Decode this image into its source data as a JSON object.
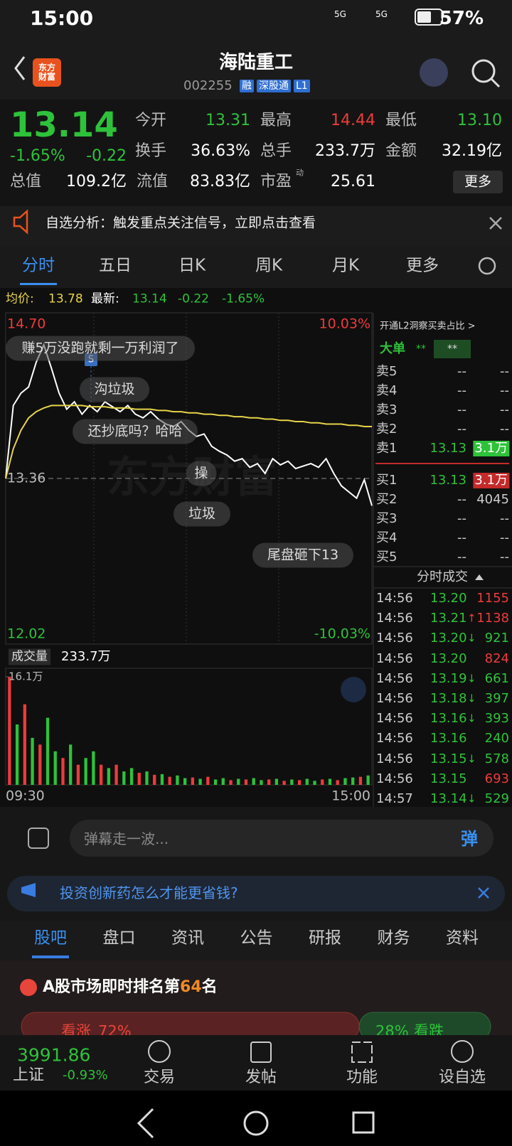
{
  "status_bar": {
    "time": "15:00",
    "network": [
      "5G",
      "5G"
    ],
    "battery": "57%"
  },
  "header": {
    "logo": "东方财富",
    "title": "海陆重工",
    "code": "002255",
    "tags": [
      "融",
      "深股通",
      "L1"
    ]
  },
  "quote": {
    "price": "13.14",
    "change_pct": "-1.65%",
    "change": "-0.22",
    "more": "更多",
    "pe_note": "动",
    "fields": [
      {
        "label": "今开",
        "value": "13.31"
      },
      {
        "label": "最高",
        "value": "14.44"
      },
      {
        "label": "最低",
        "value": "13.10"
      },
      {
        "label": "换手",
        "value": "36.63%"
      },
      {
        "label": "总手",
        "value": "233.7万"
      },
      {
        "label": "金额",
        "value": "32.19亿"
      },
      {
        "label": "总值",
        "value": "109.2亿"
      },
      {
        "label": "流值",
        "value": "83.83亿"
      },
      {
        "label": "市盈",
        "value": "25.61"
      }
    ]
  },
  "notice": "自选分析：触发重点关注信号，立即点击查看",
  "tabs": [
    "分时",
    "五日",
    "日K",
    "周K",
    "月K",
    "更多"
  ],
  "chart_info": {
    "avg_label": "均价:",
    "avg": "13.78",
    "latest_label": "最新:",
    "latest": "13.14",
    "change": "-0.22",
    "change_pct": "-1.65%"
  },
  "chart_data": [
    {
      "type": "line",
      "ylim": [
        12.02,
        14.7
      ],
      "yticks": [
        {
          "value": 14.7,
          "label": "14.70"
        },
        {
          "value": 13.36,
          "label": "13.36"
        },
        {
          "value": 12.02,
          "label": "12.02"
        }
      ],
      "y2lim": [
        -10.03,
        10.03
      ],
      "y2ticks": [
        {
          "value": 10.03,
          "label": "10.03%"
        },
        {
          "value": -10.03,
          "label": "-10.03%"
        }
      ],
      "series": [
        {
          "color": "#ffffff",
          "values": [
            13.36,
            13.95,
            14.05,
            14.1,
            14.3,
            14.44,
            14.25,
            14.05,
            13.92,
            13.98,
            13.88,
            13.95,
            13.9,
            13.98,
            13.94,
            13.9,
            13.95,
            13.88,
            13.85,
            13.9,
            13.84,
            13.8,
            13.78,
            13.82,
            13.75,
            13.7,
            13.72,
            13.62,
            13.58,
            13.55,
            13.5,
            13.52,
            13.45,
            13.48,
            13.4,
            13.52,
            13.47,
            13.5,
            13.44,
            13.46,
            13.48,
            13.45,
            13.52,
            13.4,
            13.3,
            13.25,
            13.2,
            13.35,
            13.14
          ]
        },
        {
          "color": "#e6d34a",
          "values": [
            13.36,
            13.6,
            13.75,
            13.85,
            13.9,
            13.93,
            13.95,
            13.95,
            13.95,
            13.95,
            13.95,
            13.94,
            13.94,
            13.94,
            13.93,
            13.93,
            13.93,
            13.92,
            13.92,
            13.92,
            13.91,
            13.91,
            13.9,
            13.9,
            13.89,
            13.89,
            13.88,
            13.88,
            13.87,
            13.87,
            13.86,
            13.86,
            13.85,
            13.85,
            13.84,
            13.84,
            13.83,
            13.83,
            13.82,
            13.82,
            13.81,
            13.81,
            13.8,
            13.8,
            13.8,
            13.79,
            13.79,
            13.78,
            13.78
          ]
        }
      ]
    },
    {
      "type": "bar",
      "ylim": [
        0,
        16.1
      ],
      "yticks": [
        {
          "value": 16.1,
          "label": "16.1万"
        }
      ],
      "x_labels": [
        "09:30",
        "15:00"
      ],
      "values": [
        16.1,
        9,
        12,
        7,
        6,
        10,
        5,
        4,
        6,
        3,
        4,
        5,
        3,
        2.5,
        3,
        2,
        2.5,
        1.8,
        2,
        1.5,
        1.6,
        1.2,
        1.4,
        1,
        1.1,
        0.9,
        1.2,
        0.8,
        1,
        0.7,
        0.9,
        0.8,
        1,
        0.7,
        0.8,
        0.9,
        0.6,
        0.8,
        0.7,
        0.9,
        0.6,
        0.8,
        0.9,
        0.7,
        1,
        1.1,
        1.2,
        1.4
      ],
      "colors": [
        "#ee3b3b",
        "#2ec23a",
        "#ee3b3b",
        "#2ec23a",
        "#ee3b3b",
        "#2ec23a",
        "#2ec23a",
        "#ee3b3b",
        "#2ec23a",
        "#ee3b3b",
        "#2ec23a",
        "#2ec23a",
        "#ee3b3b",
        "#2ec23a",
        "#ee3b3b",
        "#2ec23a",
        "#2ec23a",
        "#ee3b3b",
        "#2ec23a",
        "#ee3b3b",
        "#2ec23a",
        "#ee3b3b",
        "#2ec23a",
        "#2ec23a",
        "#ee3b3b",
        "#2ec23a",
        "#ee3b3b",
        "#2ec23a",
        "#2ec23a",
        "#ee3b3b",
        "#2ec23a",
        "#ee3b3b",
        "#2ec23a",
        "#2ec23a",
        "#ee3b3b",
        "#2ec23a",
        "#ee3b3b",
        "#2ec23a",
        "#ee3b3b",
        "#2ec23a",
        "#2ec23a",
        "#ee3b3b",
        "#2ec23a",
        "#ee3b3b",
        "#2ec23a",
        "#2ec23a",
        "#ee3b3b",
        "#2ec23a"
      ]
    }
  ],
  "volume_info": {
    "label": "成交量",
    "total": "233.7万"
  },
  "marker": "S",
  "watermark": "东方财富",
  "comments": [
    "赚5万没跑就剩一万利润了",
    "沟垃圾",
    "还抄底吗？哈哈",
    "操",
    "垃圾",
    "尾盘砸下13"
  ],
  "order_book": {
    "promo": "开通L2洞察买卖占比 >",
    "big_order_label": "大单",
    "big_order_values": [
      "**",
      "**"
    ],
    "asks": [
      {
        "label": "卖5",
        "price": "--",
        "volume": "--"
      },
      {
        "label": "卖4",
        "price": "--",
        "volume": "--"
      },
      {
        "label": "卖3",
        "price": "--",
        "volume": "--"
      },
      {
        "label": "卖2",
        "price": "--",
        "volume": "--"
      },
      {
        "label": "卖1",
        "price": "13.13",
        "volume": "3.1万"
      }
    ],
    "bids": [
      {
        "label": "买1",
        "price": "13.13",
        "volume": "3.1万"
      },
      {
        "label": "买2",
        "price": "--",
        "volume": "4045"
      },
      {
        "label": "买3",
        "price": "--",
        "volume": "--"
      },
      {
        "label": "买4",
        "price": "--",
        "volume": "--"
      },
      {
        "label": "买5",
        "price": "--",
        "volume": "--"
      }
    ]
  },
  "trades": {
    "title": "分时成交",
    "rows": [
      {
        "time": "14:56",
        "price": "13.20",
        "arrow": "",
        "volume": "1155",
        "volume_color": "#ee3b3b"
      },
      {
        "time": "14:56",
        "price": "13.21",
        "arrow": "↑",
        "volume": "1138",
        "volume_color": "#ee3b3b"
      },
      {
        "time": "14:56",
        "price": "13.20",
        "arrow": "↓",
        "volume": "921",
        "volume_color": "#2ec23a"
      },
      {
        "time": "14:56",
        "price": "13.20",
        "arrow": "",
        "volume": "824",
        "volume_color": "#ee3b3b"
      },
      {
        "time": "14:56",
        "price": "13.19",
        "arrow": "↓",
        "volume": "661",
        "volume_color": "#2ec23a"
      },
      {
        "time": "14:56",
        "price": "13.18",
        "arrow": "↓",
        "volume": "397",
        "volume_color": "#2ec23a"
      },
      {
        "time": "14:56",
        "price": "13.16",
        "arrow": "↓",
        "volume": "393",
        "volume_color": "#2ec23a"
      },
      {
        "time": "14:56",
        "price": "13.16",
        "arrow": "",
        "volume": "240",
        "volume_color": "#2ec23a"
      },
      {
        "time": "14:56",
        "price": "13.15",
        "arrow": "↓",
        "volume": "578",
        "volume_color": "#2ec23a"
      },
      {
        "time": "14:56",
        "price": "13.15",
        "arrow": "",
        "volume": "693",
        "volume_color": "#ee3b3b"
      },
      {
        "time": "14:57",
        "price": "13.14",
        "arrow": "↓",
        "volume": "529",
        "volume_color": "#2ec23a"
      }
    ]
  },
  "comment_input": {
    "placeholder": "弹幕走一波...",
    "button": "弹"
  },
  "ad": "投资创新药怎么才能更省钱?",
  "sub_tabs": [
    "股吧",
    "盘口",
    "资讯",
    "公告",
    "研报",
    "财务",
    "资料"
  ],
  "ranking": {
    "prefix": "A股市场即时排名第",
    "rank": "64",
    "suffix": "名"
  },
  "sentiment": {
    "labels": [
      "看涨",
      "看跌"
    ],
    "values": [
      72,
      28
    ],
    "value_labels": [
      "72%",
      "28%"
    ]
  },
  "bottom_nav": {
    "index_value": "3991.86",
    "index_name": "上证",
    "index_change": "-0.93%",
    "items": [
      "交易",
      "发帖",
      "功能",
      "设自选"
    ]
  }
}
